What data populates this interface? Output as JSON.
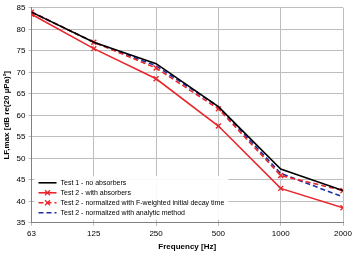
{
  "chart_data": {
    "type": "line",
    "x_label": "Frequency [Hz]",
    "y_label": "LF,max [dB re(20 µPa)²]",
    "categories": [
      "63",
      "125",
      "250",
      "500",
      "1000",
      "2000"
    ],
    "series": [
      {
        "name": "Test 1 - no absorbers",
        "color": "#000000",
        "line_style": "solid",
        "marker": "none",
        "values": [
          84,
          77,
          72,
          62,
          47.5,
          42.5
        ]
      },
      {
        "name": "Test 2 - with absorbers",
        "color": "#e8262b",
        "line_style": "solid",
        "marker": "x",
        "values": [
          83.5,
          75.5,
          68.5,
          57.5,
          43,
          38.5
        ]
      },
      {
        "name": "Test 2 - normalized with F-weighted initial decay time",
        "color": "#e8262b",
        "line_style": "dashed",
        "marker": "x",
        "values": [
          84,
          77,
          71,
          61.5,
          46,
          42.5
        ]
      },
      {
        "name": "Test 2 - normalized with analytic method",
        "color": "#1f2fa8",
        "line_style": "dashed",
        "marker": "none",
        "values": [
          84,
          77,
          71.5,
          62,
          46.5,
          41
        ]
      }
    ],
    "ylim": [
      35,
      85
    ],
    "yticks": [
      35,
      40,
      45,
      50,
      55,
      60,
      65,
      70,
      75,
      80,
      85
    ],
    "grid": true,
    "legend": "lower left"
  }
}
